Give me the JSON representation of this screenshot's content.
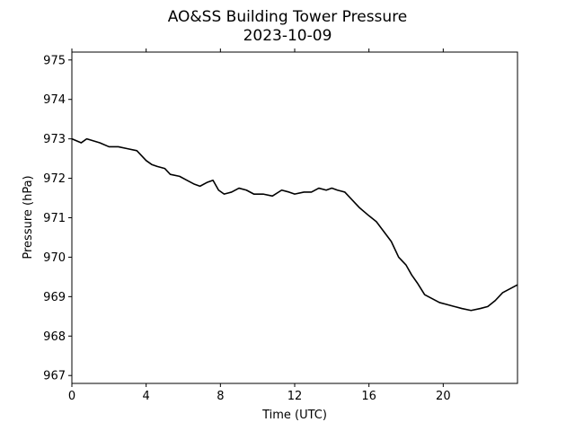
{
  "chart_data": {
    "type": "line",
    "title": "AO&SS Building Tower Pressure",
    "subtitle": "2023-10-09",
    "xlabel": "Time (UTC)",
    "ylabel": "Pressure (hPa)",
    "xlim": [
      0,
      24
    ],
    "ylim": [
      966.8,
      975.2
    ],
    "xticks": [
      0,
      4,
      8,
      12,
      16,
      20
    ],
    "yticks": [
      967,
      968,
      969,
      970,
      971,
      972,
      973,
      974,
      975
    ],
    "grid": false,
    "line_color": "#000000",
    "series": [
      {
        "x": [
          0,
          0.5,
          0.8,
          1.5,
          2,
          2.5,
          3,
          3.5,
          4,
          4.3,
          4.6,
          5,
          5.3,
          5.8,
          6.2,
          6.6,
          6.9,
          7.3,
          7.6,
          7.9,
          8.2,
          8.6,
          9,
          9.4,
          9.8,
          10.3,
          10.8,
          11.3,
          11.7,
          12,
          12.5,
          12.9,
          13.3,
          13.7,
          14,
          14.3,
          14.7,
          15,
          15.5,
          16,
          16.4,
          16.8,
          17.2,
          17.6,
          18,
          18.3,
          18.6,
          19,
          19.4,
          19.8,
          20.2,
          20.6,
          21,
          21.5,
          22,
          22.4,
          22.8,
          23.2,
          23.6,
          24
        ],
        "y": [
          973.0,
          972.9,
          973.0,
          972.9,
          972.8,
          972.8,
          972.75,
          972.7,
          972.45,
          972.35,
          972.3,
          972.25,
          972.1,
          972.05,
          971.95,
          971.85,
          971.8,
          971.9,
          971.95,
          971.7,
          971.6,
          971.65,
          971.75,
          971.7,
          971.6,
          971.6,
          971.55,
          971.7,
          971.65,
          971.6,
          971.65,
          971.65,
          971.75,
          971.7,
          971.75,
          971.7,
          971.65,
          971.5,
          971.25,
          971.05,
          970.9,
          970.65,
          970.4,
          970.0,
          969.8,
          969.55,
          969.35,
          969.05,
          968.95,
          968.85,
          968.8,
          968.75,
          968.7,
          968.65,
          968.7,
          968.75,
          968.9,
          969.1,
          969.2,
          969.3
        ]
      }
    ]
  }
}
